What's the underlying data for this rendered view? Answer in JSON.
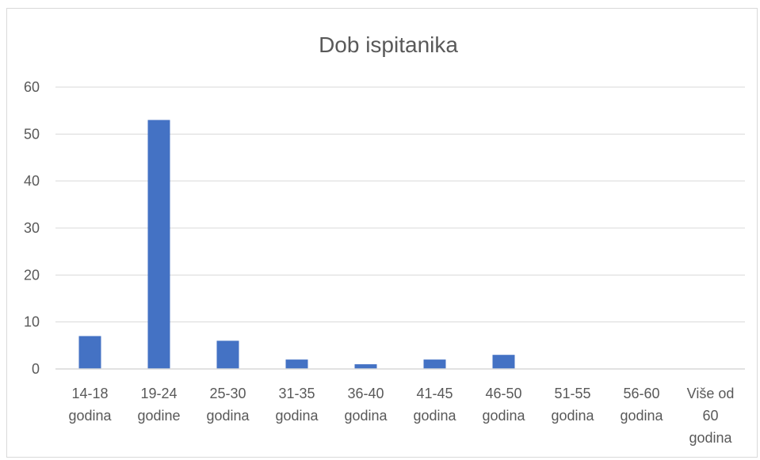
{
  "chart_data": {
    "type": "bar",
    "title": "Dob ispitanika",
    "categories": [
      [
        "14-18",
        "godina"
      ],
      [
        "19-24",
        "godine"
      ],
      [
        "25-30",
        "godina"
      ],
      [
        "31-35",
        "godina"
      ],
      [
        "36-40",
        "godina"
      ],
      [
        "41-45",
        "godina"
      ],
      [
        "46-50",
        "godina"
      ],
      [
        "51-55",
        "godina"
      ],
      [
        "56-60",
        "godina"
      ],
      [
        "Više od",
        "60",
        "godina"
      ]
    ],
    "values": [
      7,
      53,
      6,
      2,
      1,
      2,
      3,
      0,
      0,
      0
    ],
    "ylim": [
      0,
      60
    ],
    "yticks": [
      0,
      10,
      20,
      30,
      40,
      50,
      60
    ],
    "grid": true,
    "legend": "none",
    "colors": {
      "bar": "#4472C4"
    }
  }
}
